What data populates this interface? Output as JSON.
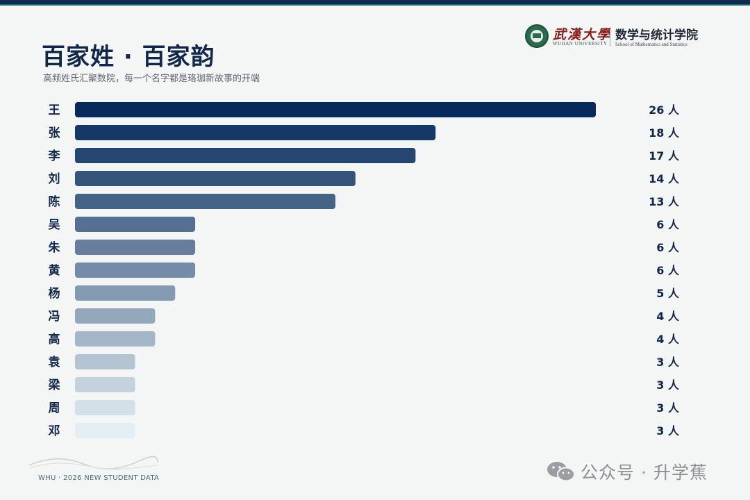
{
  "header": {
    "title": "百家姓 · 百家韵",
    "subtitle": "高频姓氏汇聚数院，每一个名字都是珞珈新故事的开端"
  },
  "logo": {
    "university_cn": "武漢大學",
    "university_en": "WUHAN UNIVERSITY",
    "school_cn": "数学与统计学院",
    "school_en": "School of Mathematics and Statistics"
  },
  "footer": {
    "caption": "WHU · 2026 NEW STUDENT DATA"
  },
  "watermark": {
    "text": "公众号 · 升学蕉"
  },
  "colors": {
    "title": "#10274b",
    "bar_dark": "#062a5c",
    "bar_light": "#e3eef3",
    "value_text": "#10274b"
  },
  "chart_data": {
    "type": "bar",
    "orientation": "horizontal",
    "categories": [
      "王",
      "张",
      "李",
      "刘",
      "陈",
      "吴",
      "朱",
      "黄",
      "杨",
      "冯",
      "高",
      "袁",
      "梁",
      "周",
      "邓"
    ],
    "values": [
      26,
      18,
      17,
      14,
      13,
      6,
      6,
      6,
      5,
      4,
      4,
      3,
      3,
      3,
      3
    ],
    "value_unit": "人",
    "title": "",
    "xlabel": "",
    "ylabel": "",
    "grid": false,
    "legend": "none"
  }
}
